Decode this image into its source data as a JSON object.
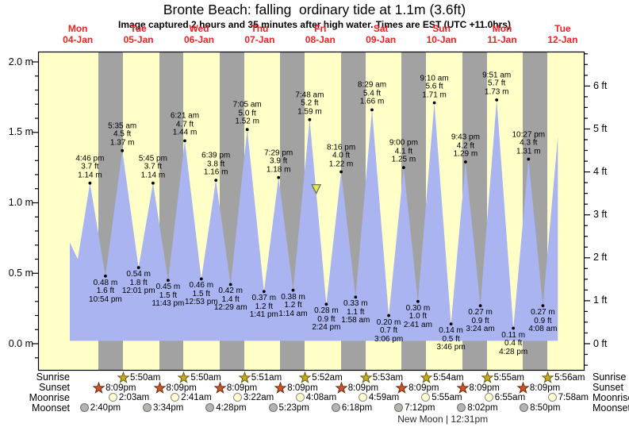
{
  "chart_data": {
    "type": "area",
    "title": "Bronte Beach: falling  ordinary tide at 1.1m (3.6ft)",
    "subtitle": "Image captured 2 hours and 35 minutes after high water. Times are EST (UTC +11.0hrs)",
    "ylabel_left_unit": "m",
    "ylabel_right_unit": "ft",
    "ylim_m": [
      -0.19,
      2.27
    ],
    "left_ticks_m": [
      0.0,
      0.5,
      1.0,
      1.5,
      2.0
    ],
    "right_ticks_ft": [
      0,
      1,
      2,
      3,
      4,
      5,
      6
    ],
    "grid": false,
    "day_background": "#ffffc8",
    "night_background": "#a2a2a2",
    "tide_fill": "#a9b4f1",
    "day_label_color": "#ee2222",
    "days": [
      {
        "name": "Mon",
        "date": "04-Jan"
      },
      {
        "name": "Tue",
        "date": "05-Jan"
      },
      {
        "name": "Wed",
        "date": "06-Jan"
      },
      {
        "name": "Thu",
        "date": "07-Jan"
      },
      {
        "name": "Fri",
        "date": "08-Jan"
      },
      {
        "name": "Sat",
        "date": "09-Jan"
      },
      {
        "name": "Sun",
        "date": "10-Jan"
      },
      {
        "name": "Mon",
        "date": "11-Jan"
      },
      {
        "name": "Tue",
        "date": "12-Jan"
      }
    ],
    "tide_events": [
      {
        "kind": "start",
        "t": 0.366,
        "m": 0.72
      },
      {
        "kind": "low",
        "t": 0.497,
        "m": 0.6
      },
      {
        "kind": "high",
        "t": 0.6986,
        "m": 1.14,
        "time": "4:46 pm",
        "ft": "3.7 ft",
        "mlabel": "1.14 m"
      },
      {
        "kind": "low",
        "t": 0.9542,
        "m": 0.48,
        "time": "10:54 pm",
        "ft": "1.6 ft",
        "mlabel": "0.48 m"
      },
      {
        "kind": "high",
        "t": 1.2326,
        "m": 1.37,
        "time": "5:35 am",
        "ft": "4.5 ft",
        "mlabel": "1.37 m"
      },
      {
        "kind": "low",
        "t": 1.5007,
        "m": 0.54,
        "time": "12:01 pm",
        "ft": "1.8 ft",
        "mlabel": "0.54 m"
      },
      {
        "kind": "high",
        "t": 1.7396,
        "m": 1.14,
        "time": "5:45 pm",
        "ft": "3.7 ft",
        "mlabel": "1.14 m"
      },
      {
        "kind": "low",
        "t": 1.9882,
        "m": 0.45,
        "time": "11:43 pm",
        "ft": "1.5 ft",
        "mlabel": "0.45 m"
      },
      {
        "kind": "high",
        "t": 2.2646,
        "m": 1.44,
        "time": "6:21 am",
        "ft": "4.7 ft",
        "mlabel": "1.44 m"
      },
      {
        "kind": "low",
        "t": 2.5368,
        "m": 0.46,
        "time": "12:53 pm",
        "ft": "1.5 ft",
        "mlabel": "0.46 m"
      },
      {
        "kind": "high",
        "t": 2.7771,
        "m": 1.16,
        "time": "6:39 pm",
        "ft": "3.8 ft",
        "mlabel": "1.16 m"
      },
      {
        "kind": "low",
        "t": 3.0201,
        "m": 0.42,
        "time": "12:29 am",
        "ft": "1.4 ft",
        "mlabel": "0.42 m"
      },
      {
        "kind": "high",
        "t": 3.2951,
        "m": 1.52,
        "time": "7:05 am",
        "ft": "5.0 ft",
        "mlabel": "1.52 m"
      },
      {
        "kind": "low",
        "t": 3.5701,
        "m": 0.37,
        "time": "1:41 pm",
        "ft": "1.2 ft",
        "mlabel": "0.37 m"
      },
      {
        "kind": "high",
        "t": 3.8118,
        "m": 1.18,
        "time": "7:29 pm",
        "ft": "3.9 ft",
        "mlabel": "1.18 m"
      },
      {
        "kind": "low",
        "t": 4.0514,
        "m": 0.38,
        "time": "1:14 am",
        "ft": "1.2 ft",
        "mlabel": "0.38 m"
      },
      {
        "kind": "high",
        "t": 4.325,
        "m": 1.59,
        "time": "7:48 am",
        "ft": "5.2 ft",
        "mlabel": "1.59 m"
      },
      {
        "kind": "low",
        "t": 4.6,
        "m": 0.28,
        "time": "2:24 pm",
        "ft": "0.9 ft",
        "mlabel": "0.28 m"
      },
      {
        "kind": "high",
        "t": 4.8444,
        "m": 1.22,
        "time": "8:16 pm",
        "ft": "4.0 ft",
        "mlabel": "1.22 m"
      },
      {
        "kind": "low",
        "t": 5.0819,
        "m": 0.33,
        "time": "1:58 am",
        "ft": "1.1 ft",
        "mlabel": "0.33 m"
      },
      {
        "kind": "high",
        "t": 5.3535,
        "m": 1.66,
        "time": "8:29 am",
        "ft": "5.4 ft",
        "mlabel": "1.66 m"
      },
      {
        "kind": "low",
        "t": 5.6292,
        "m": 0.2,
        "time": "3:06 pm",
        "ft": "0.7 ft",
        "mlabel": "0.20 m"
      },
      {
        "kind": "high",
        "t": 5.875,
        "m": 1.25,
        "time": "9:00 pm",
        "ft": "4.1 ft",
        "mlabel": "1.25 m"
      },
      {
        "kind": "low",
        "t": 6.1118,
        "m": 0.3,
        "time": "2:41 am",
        "ft": "1.0 ft",
        "mlabel": "0.30 m"
      },
      {
        "kind": "high",
        "t": 6.3819,
        "m": 1.71,
        "time": "9:10 am",
        "ft": "5.6 ft",
        "mlabel": "1.71 m"
      },
      {
        "kind": "low",
        "t": 6.6569,
        "m": 0.14,
        "time": "3:46 pm",
        "ft": "0.5 ft",
        "mlabel": "0.14 m"
      },
      {
        "kind": "high",
        "t": 6.8965,
        "m": 1.29,
        "time": "9:43 pm",
        "ft": "4.2 ft",
        "mlabel": "1.29 m"
      },
      {
        "kind": "low",
        "t": 7.1417,
        "m": 0.27,
        "time": "3:24 am",
        "ft": "0.9 ft",
        "mlabel": "0.27 m"
      },
      {
        "kind": "high",
        "t": 7.4104,
        "m": 1.73,
        "time": "9:51 am",
        "ft": "5.7 ft",
        "mlabel": "1.73 m"
      },
      {
        "kind": "low",
        "t": 7.6861,
        "m": 0.11,
        "time": "4:28 pm",
        "ft": "0.4 ft",
        "mlabel": "0.11 m"
      },
      {
        "kind": "high",
        "t": 7.9354,
        "m": 1.31,
        "time": "10:27 pm",
        "ft": "4.3 ft",
        "mlabel": "1.31 m"
      },
      {
        "kind": "low",
        "t": 8.1722,
        "m": 0.27,
        "time": "4:08 am",
        "ft": "0.9 ft",
        "mlabel": "0.27 m"
      },
      {
        "kind": "end",
        "t": 8.42,
        "m": 1.47
      }
    ],
    "current_tide_marker": {
      "t": 4.433,
      "m": 1.1,
      "fill": "#e6e93c",
      "stroke": "#666666"
    },
    "astro": {
      "rows": [
        {
          "key": "sunrise",
          "label": "Sunrise",
          "icon": "star",
          "fill": "#c8ac1e",
          "stroke": "#6a5d12",
          "items": [
            {
              "day": 1,
              "time": "5:50am"
            },
            {
              "day": 2,
              "time": "5:50am"
            },
            {
              "day": 3,
              "time": "5:51am"
            },
            {
              "day": 4,
              "time": "5:52am"
            },
            {
              "day": 5,
              "time": "5:53am"
            },
            {
              "day": 6,
              "time": "5:54am"
            },
            {
              "day": 7,
              "time": "5:55am"
            },
            {
              "day": 8,
              "time": "5:56am"
            }
          ]
        },
        {
          "key": "sunset",
          "label": "Sunset",
          "icon": "star",
          "fill": "#cf5526",
          "stroke": "#6e2a0e",
          "items": [
            {
              "day": 0,
              "time": "8:09pm"
            },
            {
              "day": 1,
              "time": "8:09pm"
            },
            {
              "day": 2,
              "time": "8:09pm"
            },
            {
              "day": 3,
              "time": "8:09pm"
            },
            {
              "day": 4,
              "time": "8:09pm"
            },
            {
              "day": 5,
              "time": "8:09pm"
            },
            {
              "day": 6,
              "time": "8:09pm"
            },
            {
              "day": 7,
              "time": "8:09pm"
            }
          ]
        },
        {
          "key": "moonrise",
          "label": "Moonrise",
          "icon": "circle",
          "fill": "#ffffd0",
          "stroke": "#8a8a8a",
          "items": [
            {
              "day": 1,
              "time": "2:03am"
            },
            {
              "day": 2,
              "time": "2:41am"
            },
            {
              "day": 3,
              "time": "3:22am"
            },
            {
              "day": 4,
              "time": "4:08am"
            },
            {
              "day": 5,
              "time": "4:59am"
            },
            {
              "day": 6,
              "time": "5:55am"
            },
            {
              "day": 7,
              "time": "6:55am"
            },
            {
              "day": 8,
              "time": "7:58am"
            }
          ]
        },
        {
          "key": "moonset",
          "label": "Moonset",
          "icon": "circle",
          "fill": "#b5b5b0",
          "stroke": "#6e6e6e",
          "items": [
            {
              "day": 0,
              "time": "2:40pm"
            },
            {
              "day": 1,
              "time": "3:34pm"
            },
            {
              "day": 2,
              "time": "4:28pm"
            },
            {
              "day": 3,
              "time": "5:23pm"
            },
            {
              "day": 4,
              "time": "6:18pm"
            },
            {
              "day": 5,
              "time": "7:12pm"
            },
            {
              "day": 6,
              "time": "8:02pm"
            },
            {
              "day": 7,
              "time": "8:50pm"
            }
          ]
        }
      ],
      "new_moon_caption": "New Moon | 12:31pm",
      "new_moon_day": 6,
      "new_moon_time": "12:31pm"
    }
  }
}
